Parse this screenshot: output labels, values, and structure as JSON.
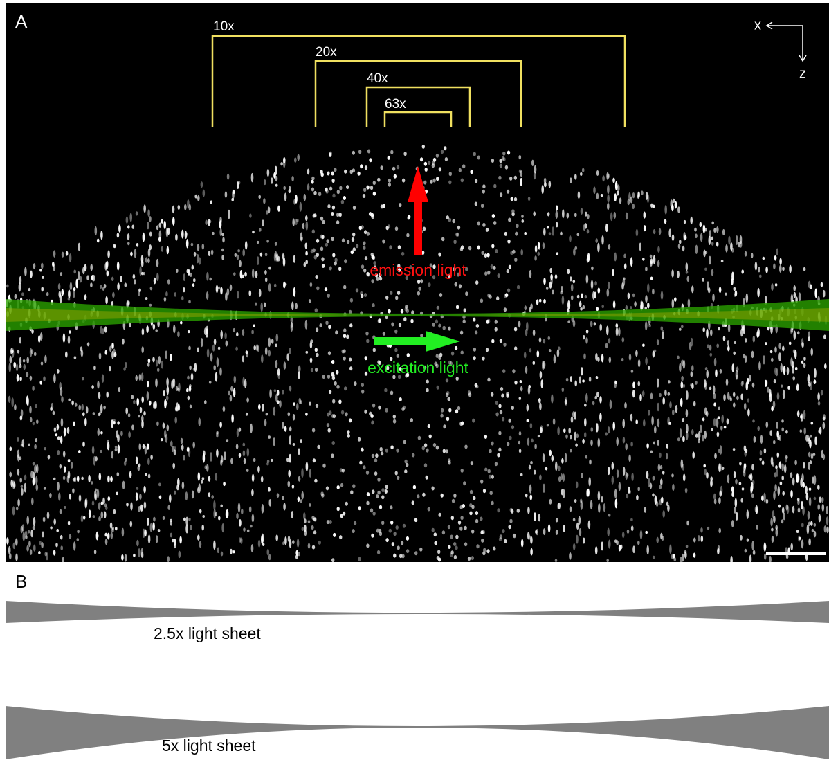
{
  "panel_a": {
    "label": "A",
    "objectives": [
      "10x",
      "20x",
      "40x",
      "63x"
    ],
    "axis_x": "x",
    "axis_z": "z",
    "emission": "emission light",
    "excitation": "excitation light"
  },
  "panel_b": {
    "label": "B",
    "sheets": [
      "2.5x light sheet",
      "5x light sheet"
    ]
  }
}
